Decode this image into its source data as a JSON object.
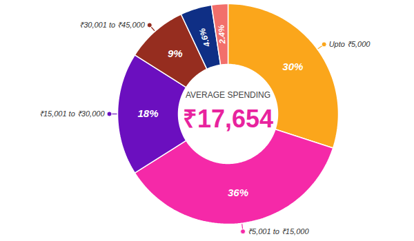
{
  "chart_data": {
    "type": "donut",
    "categories": [
      "Upto ₹5,000",
      "₹5,001 to ₹15,000",
      "₹15,001 to ₹30,000",
      "₹30,001 to ₹45,000",
      null,
      null
    ],
    "values": [
      30,
      36,
      18,
      9,
      4.6,
      2.4
    ],
    "value_labels": [
      "30%",
      "36%",
      "18%",
      "9%",
      "4.6%",
      "2.4%"
    ],
    "colors": [
      "#fba61b",
      "#f529a8",
      "#6b0fbf",
      "#962d1f",
      "#0f2f85",
      "#f26f6b"
    ],
    "data_labels": true,
    "annotations": [
      "AVERAGE SPENDING",
      "₹17,654"
    ]
  }
}
